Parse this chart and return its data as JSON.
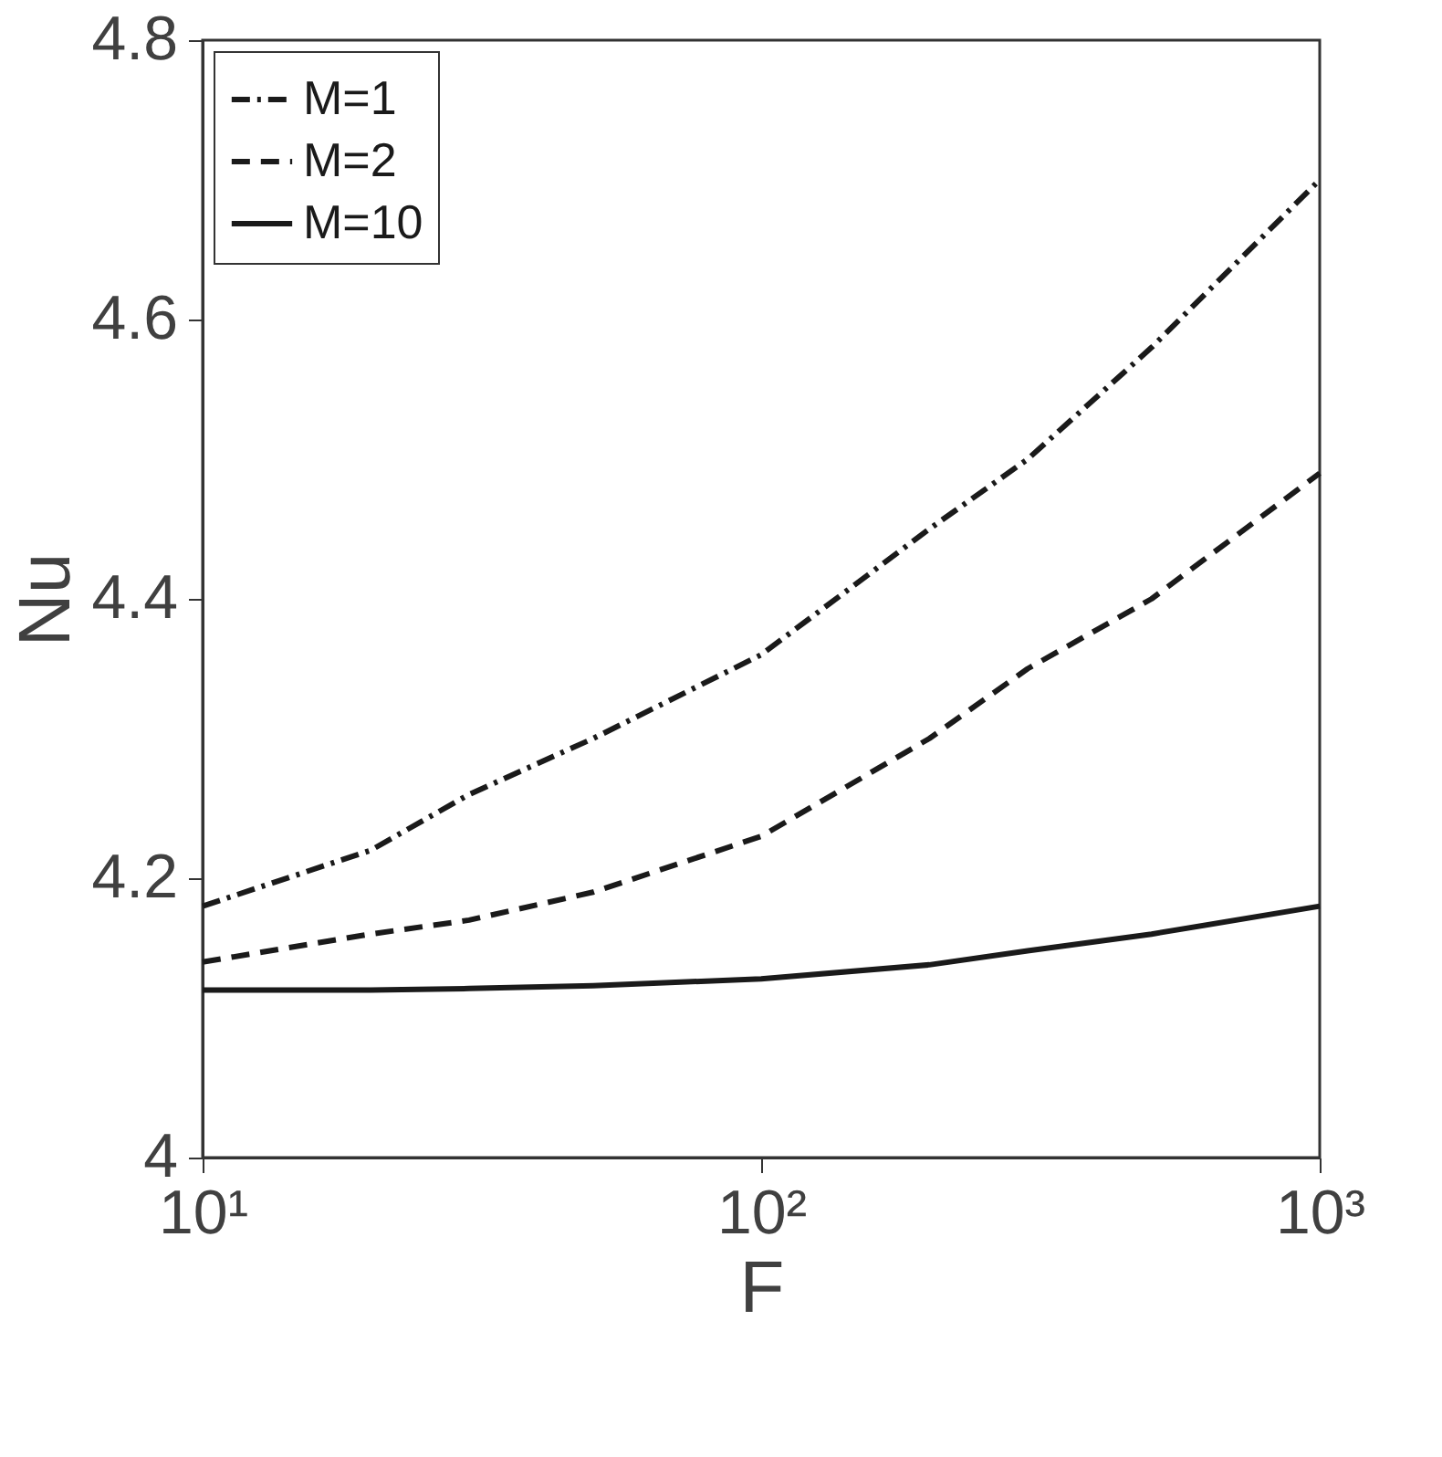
{
  "chart_data": {
    "type": "line",
    "xlabel": "F",
    "ylabel": "Nu",
    "log": "x",
    "grid": false,
    "legend": "top left",
    "marker": "none",
    "xlim": [
      10,
      1000
    ],
    "xticks": [
      {
        "value": 10,
        "label": "10¹"
      },
      {
        "value": 100,
        "label": "10²"
      },
      {
        "value": 1000,
        "label": "10³"
      }
    ],
    "ylim": [
      4,
      4.8
    ],
    "yticks": [
      4,
      4.2,
      4.4,
      4.6,
      4.8
    ],
    "series": [
      {
        "name": "M=1",
        "color": "#1a1a1a",
        "line_style": "dashdot",
        "x": [
          10,
          20,
          30,
          50,
          100,
          200,
          300,
          500,
          1000
        ],
        "values": [
          4.18,
          4.22,
          4.26,
          4.3,
          4.36,
          4.45,
          4.5,
          4.58,
          4.7
        ]
      },
      {
        "name": "M=2",
        "color": "#1a1a1a",
        "line_style": "dashed",
        "x": [
          10,
          20,
          30,
          50,
          100,
          200,
          300,
          500,
          1000
        ],
        "values": [
          4.14,
          4.16,
          4.17,
          4.19,
          4.23,
          4.3,
          4.35,
          4.4,
          4.49
        ]
      },
      {
        "name": "M=10",
        "color": "#1a1a1a",
        "line_style": "solid",
        "x": [
          10,
          20,
          30,
          50,
          100,
          200,
          300,
          500,
          1000
        ],
        "values": [
          4.12,
          4.12,
          4.121,
          4.123,
          4.128,
          4.138,
          4.148,
          4.16,
          4.18
        ]
      }
    ]
  }
}
